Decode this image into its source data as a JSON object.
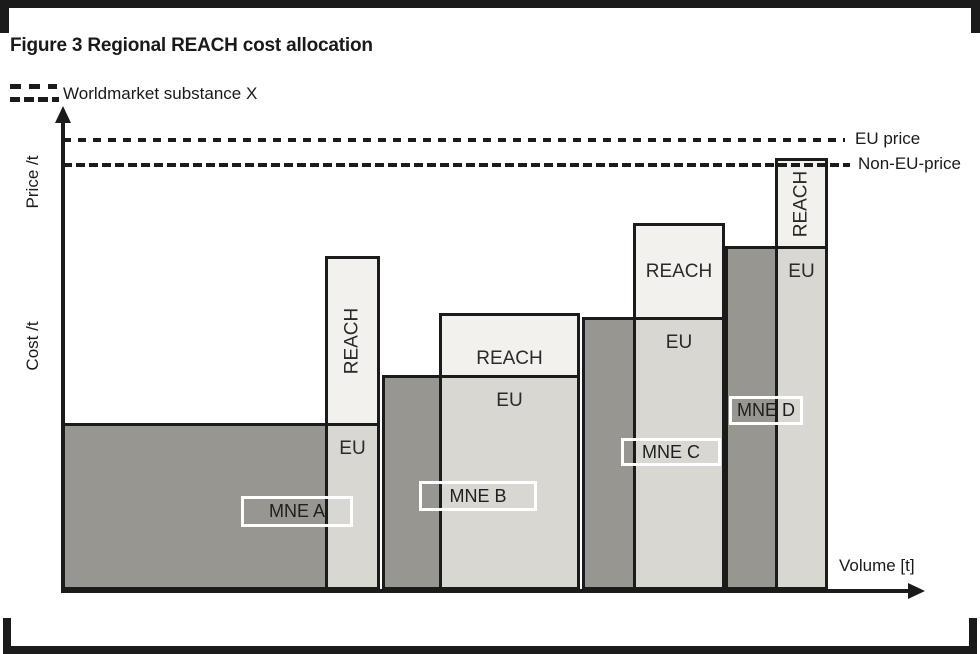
{
  "figure": {
    "title": "Figure 3 Regional REACH cost allocation",
    "legend": {
      "label": "Worldmarket substance X"
    },
    "axes": {
      "y_upper_label": "Price /t",
      "y_lower_label": "Cost /t",
      "x_label": "Volume [t]"
    }
  },
  "colors": {
    "non_eu_bar": "#989690",
    "eu_bar": "#d8d7d2",
    "reach_box": "#f2f1ee",
    "line": "#1b1b1b",
    "mne_box_border": "#ffffff"
  },
  "chart_data": {
    "type": "bar",
    "title": "Figure 3 Regional REACH cost allocation",
    "xlabel": "Volume [t]",
    "ylabel": "Cost /t (lower axis region), Price /t (upper axis region)",
    "units": "relative units estimated from pixels; no numeric scale shown",
    "legend_entry": "Worldmarket substance X (double dashed line)",
    "price_lines": [
      {
        "label": "EU price",
        "value": 450,
        "style": "dashed"
      },
      {
        "label": "Non-EU-price",
        "value": 425,
        "style": "dashed-dense"
      }
    ],
    "segment_labels": {
      "eu": "EU",
      "reach": "REACH"
    },
    "bars": [
      {
        "name": "MNE A",
        "non_eu_volume": 266,
        "eu_volume": 52,
        "unit_cost": 167,
        "reach_surcharge": 167
      },
      {
        "name": "MNE B",
        "non_eu_volume": 60,
        "eu_volume": 138,
        "unit_cost": 215,
        "reach_surcharge": 62
      },
      {
        "name": "MNE C",
        "non_eu_volume": 54,
        "eu_volume": 89,
        "unit_cost": 273,
        "reach_surcharge": 94
      },
      {
        "name": "MNE D",
        "non_eu_volume": 53,
        "eu_volume": 50,
        "unit_cost": 344,
        "reach_surcharge": 88
      }
    ]
  }
}
